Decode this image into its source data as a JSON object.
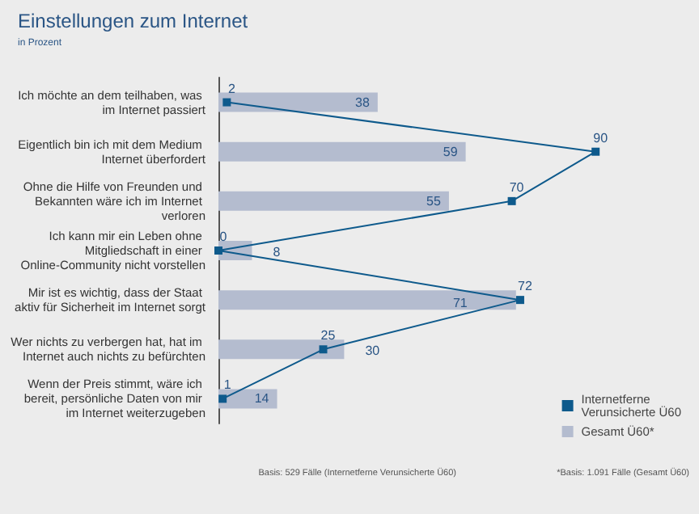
{
  "chart_data": {
    "type": "bar",
    "orientation": "horizontal",
    "title": "Einstellungen zum Internet",
    "subtitle": "in Prozent",
    "categories": [
      "Ich möchte an dem teilhaben, was im Internet passiert",
      "Eigentlich bin ich mit dem Medium Internet überfordert",
      "Ohne die Hilfe von Freunden und Bekannten wäre ich im Internet verloren",
      "Ich kann mir ein Leben ohne Mitgliedschaft in einer Online-Community nicht vorstellen",
      "Mir ist es wichtig, dass der Staat aktiv für Sicherheit im Internet sorgt",
      "Wer nichts zu verbergen hat, hat im Internet auch nichts zu befürchten",
      "Wenn der Preis stimmt, wäre ich bereit, persönliche Daten von mir im Internet weiterzugeben"
    ],
    "series": [
      {
        "name": "Gesamt Ü60*",
        "color": "#b4bccf",
        "values": [
          38,
          59,
          55,
          8,
          71,
          30,
          14
        ]
      },
      {
        "name": "Internetferne Verunsicherte Ü60",
        "type": "line",
        "color": "#0e5a8c",
        "values": [
          2,
          90,
          70,
          0,
          72,
          25,
          1
        ]
      }
    ],
    "data_labels": true,
    "legend": "bottom right",
    "marker": "square",
    "annotations": [
      "Basis: 529 Fälle (Internetferne Verunsicherte Ü60)",
      "*Basis: 1.091 Fälle (Gesamt Ü60)"
    ]
  }
}
